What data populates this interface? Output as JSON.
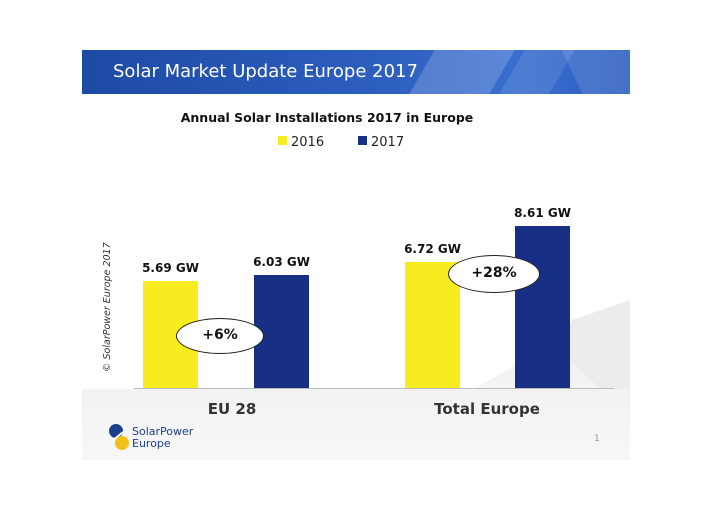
{
  "banner": {
    "title": "Solar Market Update Europe 2017"
  },
  "credit": "© SolarPower Europe 2017",
  "logo": {
    "line1": "SolarPower",
    "line2": "Europe"
  },
  "page_number": "1",
  "colors": {
    "s2016": "#f7ec1f",
    "s2017": "#182f86",
    "banner": "#2a58b8"
  },
  "chart_data": {
    "type": "bar",
    "title": "Annual Solar Installations 2017 in Europe",
    "categories": [
      "EU 28",
      "Total Europe"
    ],
    "series": [
      {
        "name": "2016",
        "values": [
          5.69,
          6.72
        ],
        "labels": [
          "5.69 GW",
          "6.72 GW"
        ]
      },
      {
        "name": "2017",
        "values": [
          6.03,
          8.61
        ],
        "labels": [
          "6.03 GW",
          "8.61 GW"
        ]
      }
    ],
    "unit": "GW",
    "growth_labels": [
      "+6%",
      "+28%"
    ],
    "ylim": [
      0,
      9
    ],
    "legend": "top-center",
    "grid": false
  }
}
